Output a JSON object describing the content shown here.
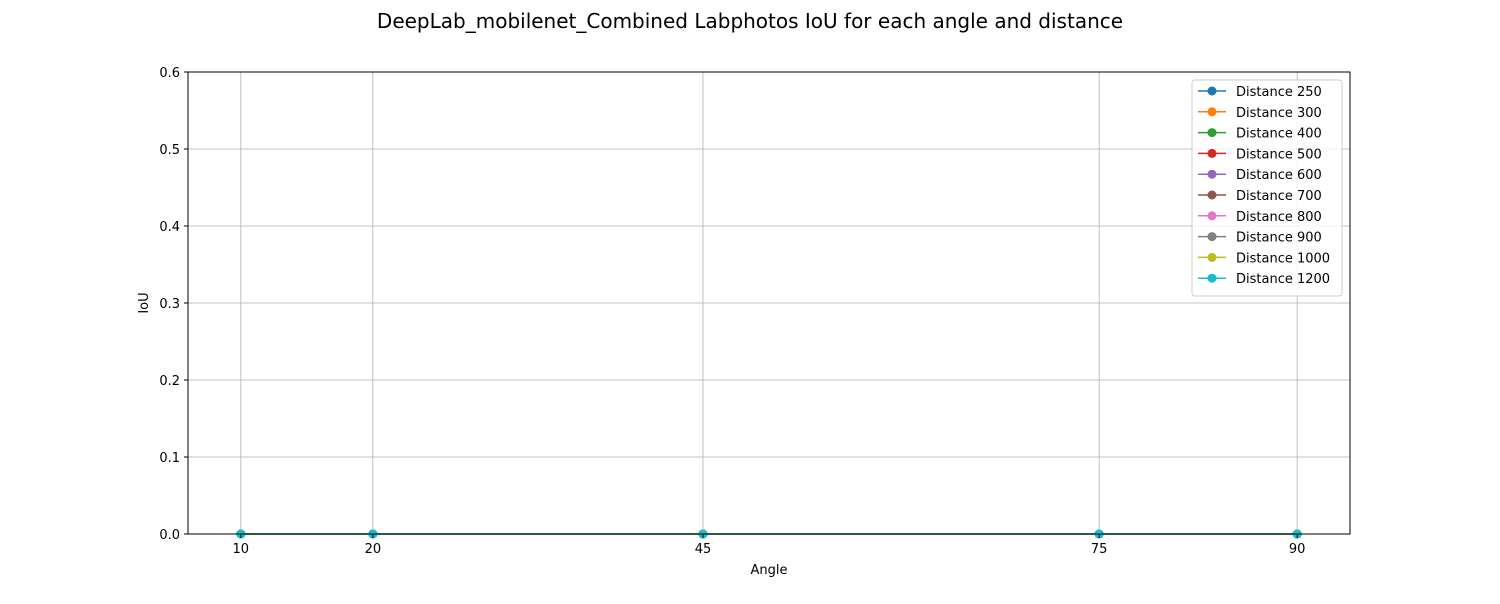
{
  "chart_data": {
    "type": "line",
    "title": "DeepLab_mobilenet_Combined Labphotos IoU for each angle and distance",
    "xlabel": "Angle",
    "ylabel": "IoU",
    "x": [
      10,
      20,
      45,
      75,
      90
    ],
    "x_tick_labels": [
      "10",
      "20",
      "45",
      "75",
      "90"
    ],
    "xlim": [
      6,
      94
    ],
    "ylim": [
      0,
      0.6
    ],
    "y_ticks": [
      0,
      0.1,
      0.2,
      0.3,
      0.4,
      0.5,
      0.6
    ],
    "y_tick_labels": [
      "0.0",
      "0.1",
      "0.2",
      "0.3",
      "0.4",
      "0.5",
      "0.6"
    ],
    "grid": true,
    "legend_position": "top-right",
    "series": [
      {
        "name": "Distance 250",
        "color": "#1f77b4",
        "values": [
          0,
          0,
          0,
          0,
          0
        ]
      },
      {
        "name": "Distance 300",
        "color": "#ff7f0e",
        "values": [
          0,
          0,
          0,
          0,
          0
        ]
      },
      {
        "name": "Distance 400",
        "color": "#2ca02c",
        "values": [
          0,
          0,
          0,
          0,
          0
        ]
      },
      {
        "name": "Distance 500",
        "color": "#d62728",
        "values": [
          0,
          0,
          0,
          0,
          0
        ]
      },
      {
        "name": "Distance 600",
        "color": "#9467bd",
        "values": [
          0,
          0,
          0,
          0,
          0
        ]
      },
      {
        "name": "Distance 700",
        "color": "#8c564b",
        "values": [
          0,
          0,
          0,
          0,
          0
        ]
      },
      {
        "name": "Distance 800",
        "color": "#e377c2",
        "values": [
          0,
          0,
          0,
          0,
          0
        ]
      },
      {
        "name": "Distance 900",
        "color": "#7f7f7f",
        "values": [
          0,
          0,
          0,
          0,
          0
        ]
      },
      {
        "name": "Distance 1000",
        "color": "#bcbd22",
        "values": [
          0,
          0,
          0,
          0,
          0
        ]
      },
      {
        "name": "Distance 1200",
        "color": "#17becf",
        "values": [
          0,
          0,
          0,
          0,
          0
        ]
      }
    ]
  }
}
